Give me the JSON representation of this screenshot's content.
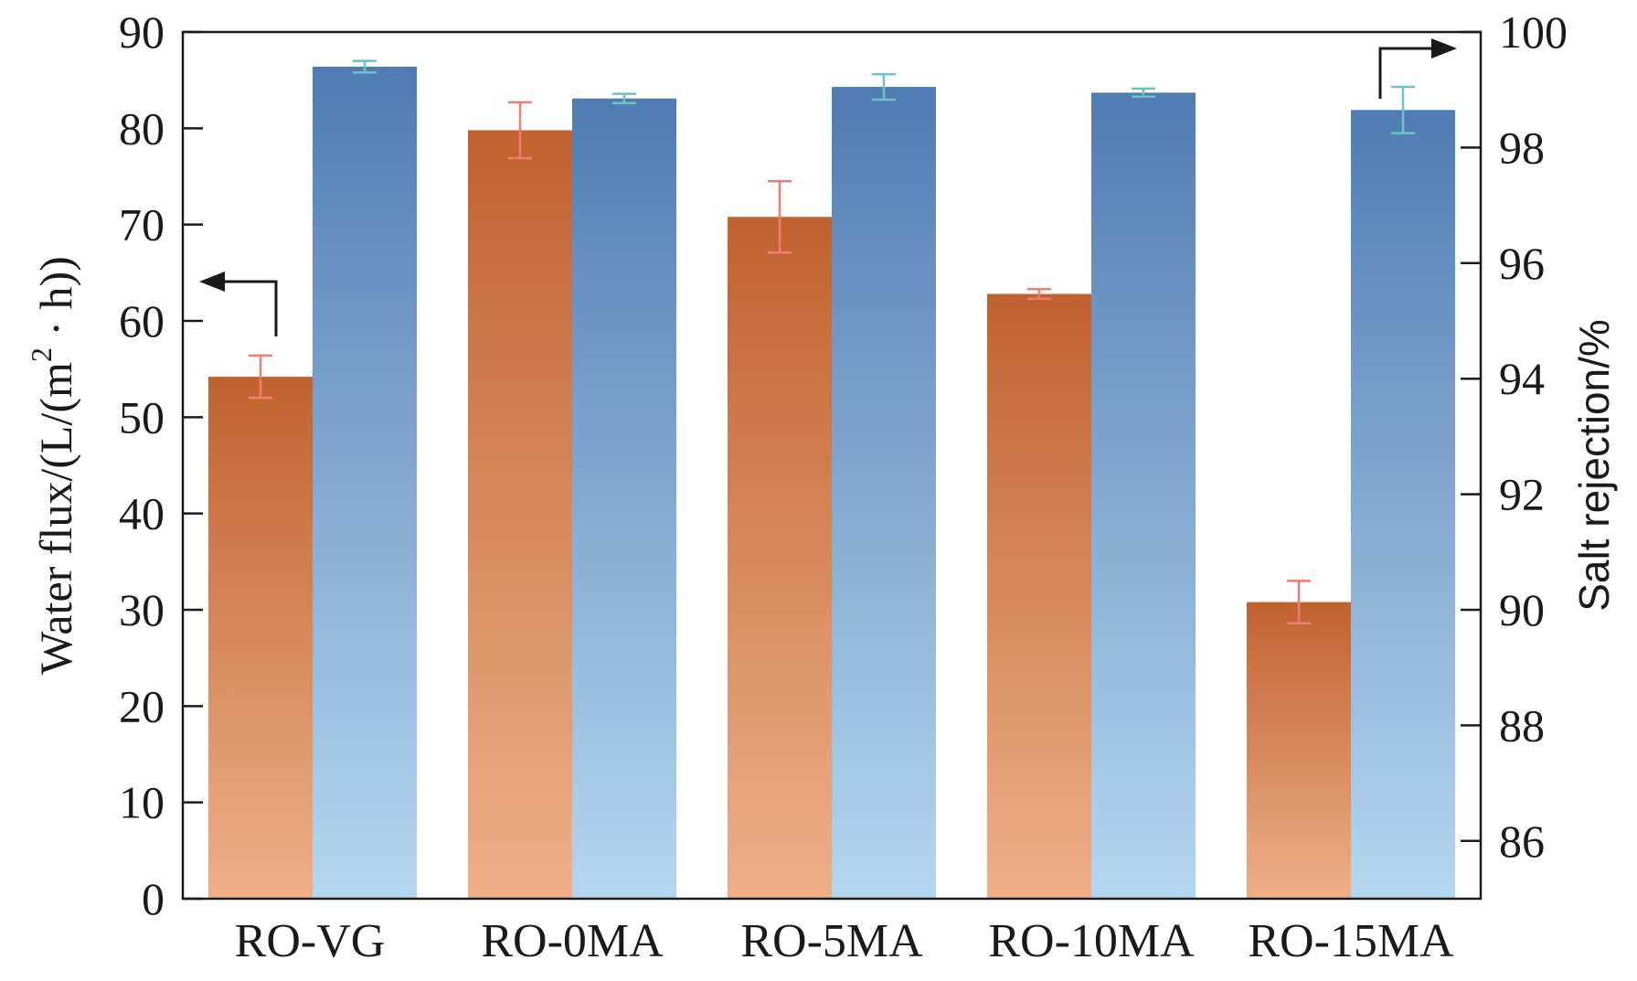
{
  "chart_data": {
    "type": "bar",
    "categories": [
      "RO-VG",
      "RO-0MA",
      "RO-5MA",
      "RO-10MA",
      "RO-15MA"
    ],
    "series": [
      {
        "axis": "left",
        "values": [
          54.2,
          79.8,
          70.8,
          62.8,
          30.8
        ],
        "errors": [
          2.2,
          2.9,
          3.7,
          0.5,
          2.2
        ],
        "gradient_top": "#c0622e",
        "gradient_bottom": "#eeaf89",
        "error_color": "#ef7d72"
      },
      {
        "axis": "right",
        "values": [
          99.4,
          98.85,
          99.05,
          98.95,
          98.65
        ],
        "errors": [
          0.1,
          0.08,
          0.22,
          0.07,
          0.4
        ],
        "gradient_top": "#4f7cb3",
        "gradient_bottom": "#b5d6ef",
        "error_color": "#6cc3c2"
      }
    ],
    "y_left": {
      "label": "Water flux/(L/(m",
      "label_sup": "2",
      "label_tail": " · h))",
      "lim": [
        0,
        90
      ],
      "ticks": [
        "0",
        "10",
        "20",
        "30",
        "40",
        "50",
        "60",
        "70",
        "80",
        "90"
      ]
    },
    "y_right": {
      "label": "Salt rejection/%",
      "lim": [
        85,
        100
      ],
      "ticks": [
        "86",
        "88",
        "90",
        "92",
        "94",
        "96",
        "98",
        "100"
      ]
    },
    "grid": false,
    "legend": "none",
    "annotations": [
      "left-arrow pointing to left axis above RO-VG flux bar",
      "right-arrow pointing to right axis above RO-15MA rejection bar"
    ]
  }
}
